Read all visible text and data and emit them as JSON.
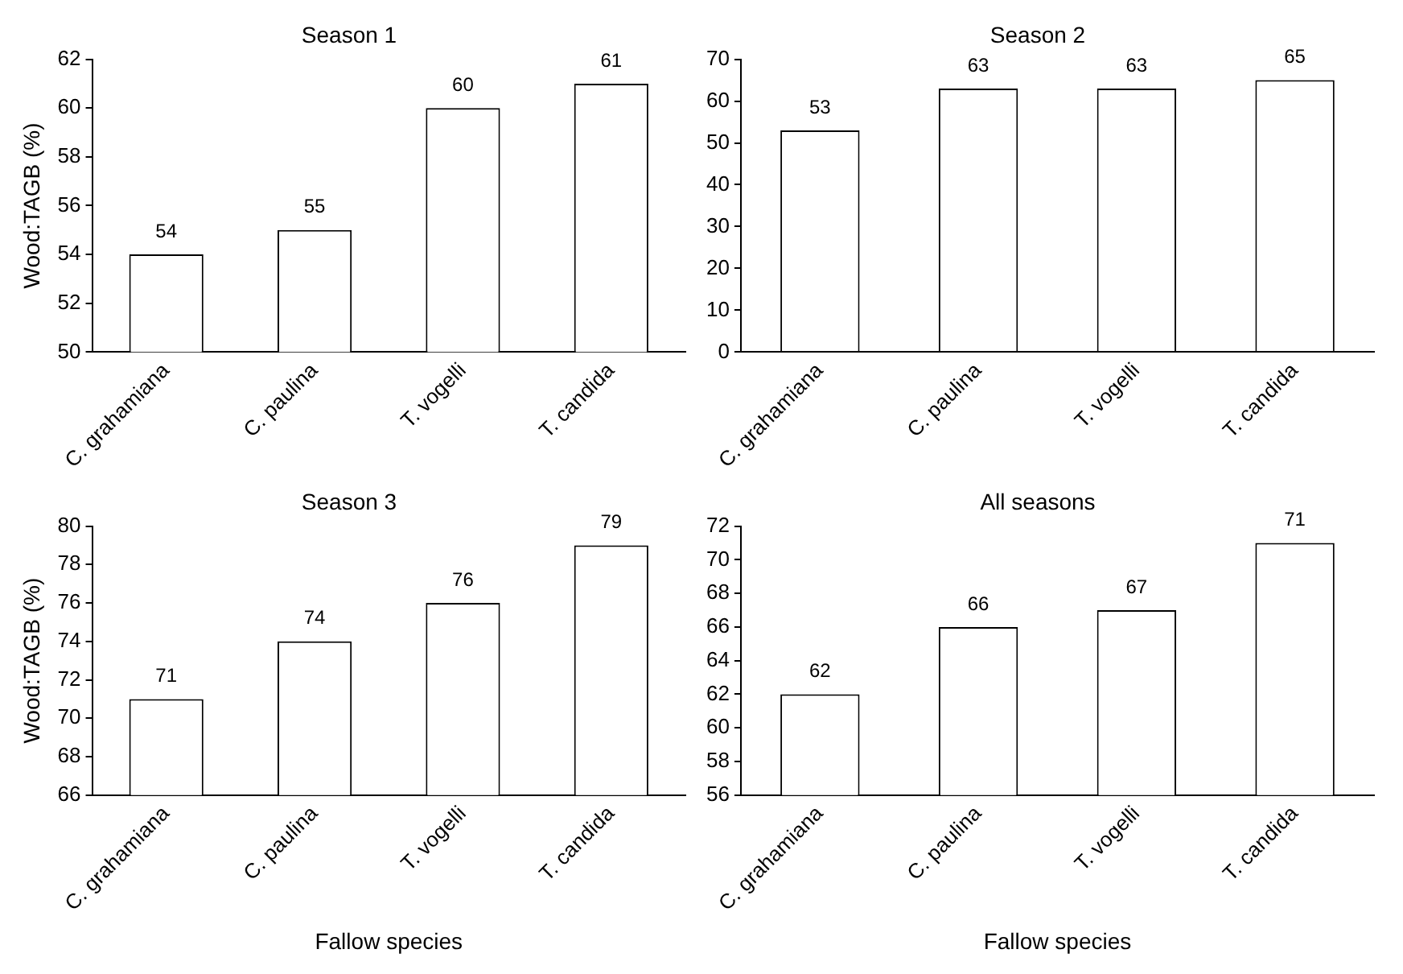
{
  "chart_data": [
    {
      "type": "bar",
      "title": "Season 1",
      "ylabel": "Wood:TAGB (%)",
      "categories": [
        "C. grahamiana",
        "C. paulina",
        "T. vogelli",
        "T. candida"
      ],
      "values": [
        54,
        55,
        60,
        61
      ],
      "color": "#ffffff",
      "ylim": [
        50,
        62
      ],
      "yticks": [
        50,
        52,
        54,
        56,
        58,
        60,
        62
      ],
      "data_labels": true
    },
    {
      "type": "bar",
      "title": "Season 2",
      "categories": [
        "C. grahamiana",
        "C. paulina",
        "T. vogelli",
        "T. candida"
      ],
      "values": [
        53,
        63,
        63,
        65
      ],
      "color": "#ffffff",
      "ylim": [
        0,
        70
      ],
      "yticks": [
        0,
        10,
        20,
        30,
        40,
        50,
        60,
        70
      ],
      "data_labels": true
    },
    {
      "type": "bar",
      "title": "Season 3",
      "ylabel": "Wood:TAGB (%)",
      "xlabel": "Fallow species",
      "categories": [
        "C. grahamiana",
        "C. paulina",
        "T. vogelli",
        "T. candida"
      ],
      "values": [
        71,
        74,
        76,
        79
      ],
      "color": "#ffffff",
      "ylim": [
        66,
        80
      ],
      "yticks": [
        66,
        68,
        70,
        72,
        74,
        76,
        78,
        80
      ],
      "data_labels": true
    },
    {
      "type": "bar",
      "title": "All seasons",
      "xlabel": "Fallow species",
      "categories": [
        "C. grahamiana",
        "C. paulina",
        "T. vogelli",
        "T. candida"
      ],
      "values": [
        62,
        66,
        67,
        71
      ],
      "color": "#ffffff",
      "ylim": [
        56,
        72
      ],
      "yticks": [
        56,
        58,
        60,
        62,
        64,
        66,
        68,
        70,
        72
      ],
      "data_labels": true
    }
  ]
}
